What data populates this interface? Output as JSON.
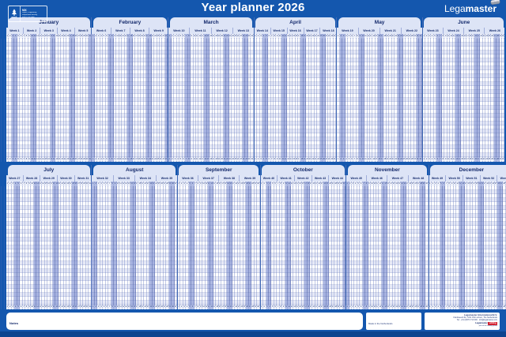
{
  "year": 2026,
  "header": {
    "title": "Year planner 2026",
    "brand": {
      "light": "Lega",
      "bold": "master"
    },
    "fsc": {
      "label": "FSC®",
      "mix": "MIX",
      "line1": "Paper | Supporting",
      "line2": "responsible forestry",
      "code": "FSC® C017606"
    }
  },
  "planner": {
    "row_count": 30,
    "week_label_prefix": "Week",
    "halves": [
      {
        "months": [
          {
            "name": "January",
            "days": 31,
            "weeks": [
              1,
              2,
              3,
              4,
              5
            ]
          },
          {
            "name": "February",
            "days": 28,
            "weeks": [
              6,
              7,
              8,
              9
            ]
          },
          {
            "name": "March",
            "days": 31,
            "weeks": [
              10,
              11,
              12,
              13
            ]
          },
          {
            "name": "April",
            "days": 30,
            "weeks": [
              14,
              15,
              16,
              17,
              18
            ]
          },
          {
            "name": "May",
            "days": 31,
            "weeks": [
              19,
              20,
              21,
              22
            ]
          },
          {
            "name": "June",
            "days": 30,
            "weeks": [
              23,
              24,
              25,
              26
            ]
          }
        ]
      },
      {
        "months": [
          {
            "name": "July",
            "days": 31,
            "weeks": [
              27,
              28,
              29,
              30,
              31
            ]
          },
          {
            "name": "August",
            "days": 31,
            "weeks": [
              32,
              33,
              34,
              35
            ]
          },
          {
            "name": "September",
            "days": 30,
            "weeks": [
              36,
              37,
              38,
              39
            ]
          },
          {
            "name": "October",
            "days": 31,
            "weeks": [
              40,
              41,
              42,
              43,
              44
            ]
          },
          {
            "name": "November",
            "days": 30,
            "weeks": [
              45,
              46,
              47,
              48
            ]
          },
          {
            "name": "December",
            "days": 31,
            "weeks": [
              49,
              50,
              51,
              52,
              53
            ]
          }
        ]
      }
    ]
  },
  "footer": {
    "notes_label": "Notes",
    "made_in": "Made in the Netherlands",
    "company": {
      "name": "Legamaster International B.V.",
      "address": "Kwinkweerd 62, 7241 CW Lochem, The Netherlands",
      "contact": "Tel.: +31 (0)573 713 000 · info@legamaster.com",
      "brand": "Legamaster",
      "edding": "edding",
      "tagline": "part of the edding group"
    }
  },
  "colors": {
    "background": "#1457ae",
    "band_light": "#dde4f6",
    "weekend": "#aeb9e2",
    "navy": "#13296b",
    "edding_red": "#d31f2e"
  }
}
